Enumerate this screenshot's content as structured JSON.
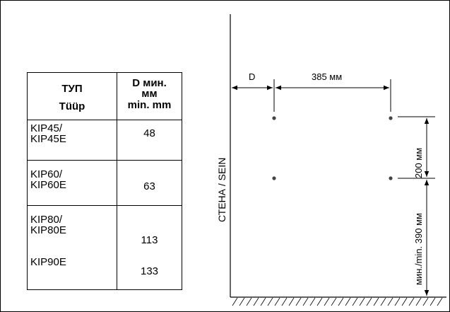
{
  "table": {
    "header_type_ru": "ТУП",
    "header_type_et": "Tüüp",
    "header_d_line1": "D мин.",
    "header_d_line2": "мм",
    "header_d_line3": "min. mm",
    "rows": [
      {
        "name_line1": "KIP45/",
        "name_line2": "KIP45E",
        "value": "48"
      },
      {
        "name_line1": "KIP60/",
        "name_line2": "KIP60E",
        "value": "63"
      },
      {
        "name_line1": "KIP80/",
        "name_line2": "KIP80E",
        "value": "113"
      },
      {
        "name_line1": "KIP90E",
        "name_line2": "",
        "value": "133"
      }
    ]
  },
  "drawing": {
    "wall_label": "СТЕНА / SEIN",
    "d_label": "D",
    "width_label": "385 мм",
    "height_label": "200 мм",
    "min_label": "мин./min. 390 мм"
  }
}
